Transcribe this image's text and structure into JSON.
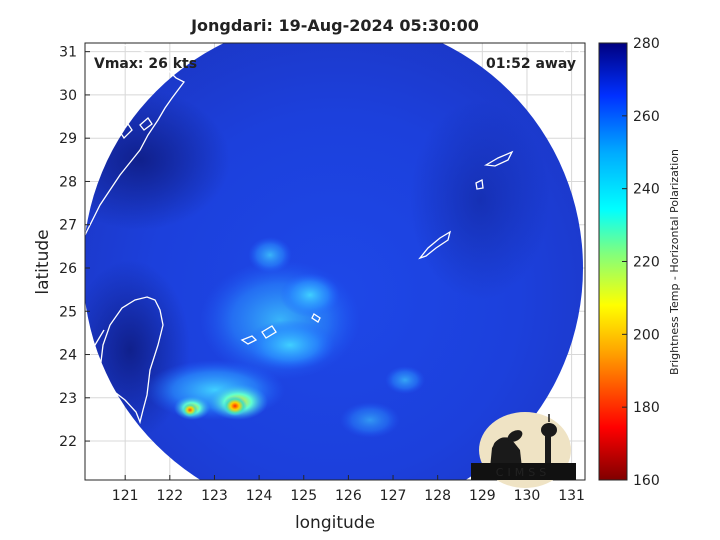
{
  "title": "Jongdari: 19-Aug-2024 05:30:00",
  "vmax_label": "Vmax: 26 kts",
  "time_away_label": "01:52 away",
  "xlabel": "longitude",
  "ylabel": "latitude",
  "colorbar_label": "Brightness Temp - Horizontal Polarization",
  "logo_text": "CIMSS",
  "axes": {
    "x_ticks": [
      "121",
      "122",
      "123",
      "124",
      "125",
      "126",
      "127",
      "128",
      "129",
      "130",
      "131"
    ],
    "y_ticks": [
      "31",
      "30",
      "29",
      "28",
      "27",
      "26",
      "25",
      "24",
      "23",
      "22"
    ],
    "xlim": [
      120.1,
      131.3
    ],
    "ylim": [
      21.1,
      31.2
    ],
    "grid": true
  },
  "colorbar": {
    "ticks": [
      "280",
      "260",
      "240",
      "220",
      "200",
      "180",
      "160"
    ],
    "range": [
      160,
      280
    ],
    "colormap": "jet"
  },
  "colors": {
    "background_field": "#1a3fd9",
    "deep_blue": "#14239a",
    "coastline": "#ffffff"
  }
}
